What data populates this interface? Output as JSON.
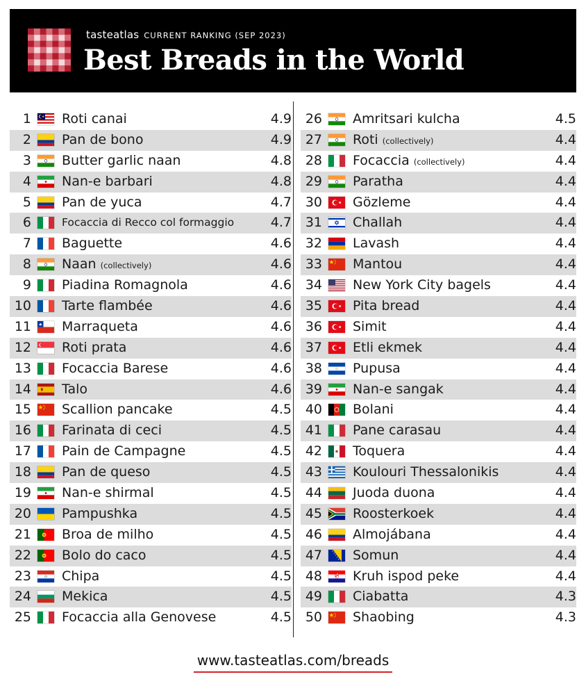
{
  "header": {
    "brand": "tasteatlas",
    "subtitle": "CURRENT RANKING (SEP 2023)",
    "title": "Best Breads in the World"
  },
  "footer": {
    "url": "www.tasteatlas.com/breads"
  },
  "colors": {
    "header_bg": "#000000",
    "row_shade": "#dcdcdc",
    "accent_red": "#d2232a"
  },
  "rankings": [
    {
      "rank": "1",
      "name": "Roti canai",
      "note": "",
      "score": "4.9",
      "flag": "malaysia-flag"
    },
    {
      "rank": "2",
      "name": "Pan de bono",
      "note": "",
      "score": "4.9",
      "flag": "colombia-flag"
    },
    {
      "rank": "3",
      "name": "Butter garlic naan",
      "note": "",
      "score": "4.8",
      "flag": "india-flag"
    },
    {
      "rank": "4",
      "name": "Nan-e barbari",
      "note": "",
      "score": "4.8",
      "flag": "iran-flag"
    },
    {
      "rank": "5",
      "name": "Pan de yuca",
      "note": "",
      "score": "4.7",
      "flag": "colombia-flag"
    },
    {
      "rank": "6",
      "name": "Focaccia di Recco col formaggio",
      "note": "",
      "score": "4.7",
      "flag": "italy-flag"
    },
    {
      "rank": "7",
      "name": "Baguette",
      "note": "",
      "score": "4.6",
      "flag": "france-flag"
    },
    {
      "rank": "8",
      "name": "Naan",
      "note": "(collectively)",
      "score": "4.6",
      "flag": "india-flag"
    },
    {
      "rank": "9",
      "name": "Piadina Romagnola",
      "note": "",
      "score": "4.6",
      "flag": "italy-flag"
    },
    {
      "rank": "10",
      "name": "Tarte flambée",
      "note": "",
      "score": "4.6",
      "flag": "france-flag"
    },
    {
      "rank": "11",
      "name": "Marraqueta",
      "note": "",
      "score": "4.6",
      "flag": "chile-flag"
    },
    {
      "rank": "12",
      "name": "Roti prata",
      "note": "",
      "score": "4.6",
      "flag": "singapore-flag"
    },
    {
      "rank": "13",
      "name": "Focaccia Barese",
      "note": "",
      "score": "4.6",
      "flag": "italy-flag"
    },
    {
      "rank": "14",
      "name": "Talo",
      "note": "",
      "score": "4.6",
      "flag": "spain-flag"
    },
    {
      "rank": "15",
      "name": "Scallion pancake",
      "note": "",
      "score": "4.5",
      "flag": "china-flag"
    },
    {
      "rank": "16",
      "name": "Farinata di ceci",
      "note": "",
      "score": "4.5",
      "flag": "italy-flag"
    },
    {
      "rank": "17",
      "name": "Pain de Campagne",
      "note": "",
      "score": "4.5",
      "flag": "france-flag"
    },
    {
      "rank": "18",
      "name": "Pan de queso",
      "note": "",
      "score": "4.5",
      "flag": "colombia-flag"
    },
    {
      "rank": "19",
      "name": "Nan-e shirmal",
      "note": "",
      "score": "4.5",
      "flag": "iran-flag"
    },
    {
      "rank": "20",
      "name": "Pampushka",
      "note": "",
      "score": "4.5",
      "flag": "ukraine-flag"
    },
    {
      "rank": "21",
      "name": "Broa de milho",
      "note": "",
      "score": "4.5",
      "flag": "portugal-flag"
    },
    {
      "rank": "22",
      "name": "Bolo do caco",
      "note": "",
      "score": "4.5",
      "flag": "portugal-flag"
    },
    {
      "rank": "23",
      "name": "Chipa",
      "note": "",
      "score": "4.5",
      "flag": "paraguay-flag"
    },
    {
      "rank": "24",
      "name": "Mekica",
      "note": "",
      "score": "4.5",
      "flag": "bulgaria-flag"
    },
    {
      "rank": "25",
      "name": "Focaccia alla Genovese",
      "note": "",
      "score": "4.5",
      "flag": "italy-flag"
    },
    {
      "rank": "26",
      "name": "Amritsari kulcha",
      "note": "",
      "score": "4.5",
      "flag": "india-flag"
    },
    {
      "rank": "27",
      "name": "Roti",
      "note": "(collectively)",
      "score": "4.4",
      "flag": "india-flag"
    },
    {
      "rank": "28",
      "name": "Focaccia",
      "note": "(collectively)",
      "score": "4.4",
      "flag": "italy-flag"
    },
    {
      "rank": "29",
      "name": "Paratha",
      "note": "",
      "score": "4.4",
      "flag": "india-flag"
    },
    {
      "rank": "30",
      "name": "Gözleme",
      "note": "",
      "score": "4.4",
      "flag": "turkey-flag"
    },
    {
      "rank": "31",
      "name": "Challah",
      "note": "",
      "score": "4.4",
      "flag": "israel-flag"
    },
    {
      "rank": "32",
      "name": "Lavash",
      "note": "",
      "score": "4.4",
      "flag": "armenia-flag"
    },
    {
      "rank": "33",
      "name": "Mantou",
      "note": "",
      "score": "4.4",
      "flag": "china-flag"
    },
    {
      "rank": "34",
      "name": "New York City bagels",
      "note": "",
      "score": "4.4",
      "flag": "usa-flag"
    },
    {
      "rank": "35",
      "name": "Pita bread",
      "note": "",
      "score": "4.4",
      "flag": "turkey-flag"
    },
    {
      "rank": "36",
      "name": "Simit",
      "note": "",
      "score": "4.4",
      "flag": "turkey-flag"
    },
    {
      "rank": "37",
      "name": "Etli ekmek",
      "note": "",
      "score": "4.4",
      "flag": "turkey-flag"
    },
    {
      "rank": "38",
      "name": "Pupusa",
      "note": "",
      "score": "4.4",
      "flag": "el-salvador-flag"
    },
    {
      "rank": "39",
      "name": "Nan-e sangak",
      "note": "",
      "score": "4.4",
      "flag": "iran-flag"
    },
    {
      "rank": "40",
      "name": "Bolani",
      "note": "",
      "score": "4.4",
      "flag": "afghanistan-flag"
    },
    {
      "rank": "41",
      "name": "Pane carasau",
      "note": "",
      "score": "4.4",
      "flag": "italy-flag"
    },
    {
      "rank": "42",
      "name": "Toquera",
      "note": "",
      "score": "4.4",
      "flag": "mexico-flag"
    },
    {
      "rank": "43",
      "name": "Koulouri Thessalonikis",
      "note": "",
      "score": "4.4",
      "flag": "greece-flag"
    },
    {
      "rank": "44",
      "name": "Juoda duona",
      "note": "",
      "score": "4.4",
      "flag": "lithuania-flag"
    },
    {
      "rank": "45",
      "name": "Roosterkoek",
      "note": "",
      "score": "4.4",
      "flag": "south-africa-flag"
    },
    {
      "rank": "46",
      "name": "Almojábana",
      "note": "",
      "score": "4.4",
      "flag": "colombia-flag"
    },
    {
      "rank": "47",
      "name": "Somun",
      "note": "",
      "score": "4.4",
      "flag": "bosnia-flag"
    },
    {
      "rank": "48",
      "name": "Kruh ispod peke",
      "note": "",
      "score": "4.4",
      "flag": "croatia-flag"
    },
    {
      "rank": "49",
      "name": "Ciabatta",
      "note": "",
      "score": "4.3",
      "flag": "italy-flag"
    },
    {
      "rank": "50",
      "name": "Shaobing",
      "note": "",
      "score": "4.3",
      "flag": "china-flag"
    }
  ]
}
